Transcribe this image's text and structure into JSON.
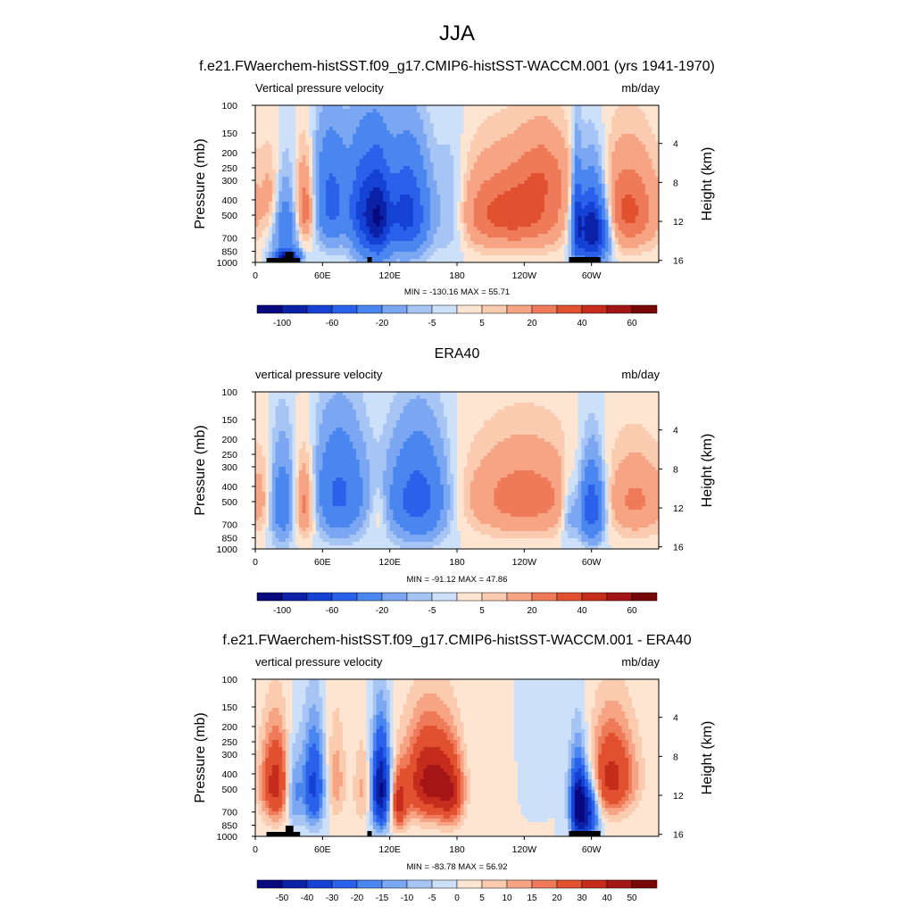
{
  "figure": {
    "title": "JJA"
  },
  "colors": {
    "levels_ab": [
      "#08087f",
      "#0b22a8",
      "#1541d4",
      "#2a61ea",
      "#4a86f0",
      "#7aa6f2",
      "#a6c4f4",
      "#cde0f9",
      "#fde5d2",
      "#fbcbb0",
      "#f6a484",
      "#ef7a5a",
      "#e1512f",
      "#c62c1c",
      "#a41616",
      "#780808"
    ],
    "levels_diff": [
      "#08087f",
      "#0b22a8",
      "#1541d4",
      "#2a61ea",
      "#4a86f0",
      "#7aa6f2",
      "#a6c4f4",
      "#cde0f9",
      "#fde5d2",
      "#fbcbb0",
      "#f6a484",
      "#ef7a5a",
      "#e1512f",
      "#c62c1c",
      "#a41616",
      "#780808"
    ]
  },
  "chart_data": [
    {
      "type": "heatmap",
      "title": "f.e21.FWaerchem-histSST.f09_g17.CMIP6-histSST-WACCM.001 (yrs 1941-1970)",
      "left_label": "Vertical pressure velocity",
      "right_label": "mb/day",
      "ylabel": "Pressure (mb)",
      "ylabel_right": "Height (km)",
      "xticks": [
        "0",
        "60E",
        "120E",
        "180",
        "120W",
        "60W"
      ],
      "xtick_lon": [
        0,
        60,
        120,
        180,
        240,
        300
      ],
      "yticks": [
        "100",
        "150",
        "200",
        "250",
        "300",
        "400",
        "500",
        "700",
        "850",
        "1000"
      ],
      "ytick_p": [
        100,
        150,
        200,
        250,
        300,
        400,
        500,
        700,
        850,
        1000
      ],
      "right_ticks": [
        "4",
        "8",
        "12",
        "16"
      ],
      "right_tick_km": [
        4,
        8,
        12,
        16
      ],
      "minmax": "MIN = -130.16  MAX =  55.71",
      "colorbar_labels": [
        "-100",
        "",
        "-60",
        "",
        "-20",
        "",
        "-5",
        "",
        "5",
        "",
        "20",
        "",
        "40",
        "",
        "60",
        ""
      ],
      "xlim": [
        0,
        360
      ],
      "ylim": [
        1000,
        100
      ],
      "terrain": true,
      "pattern": [
        {
          "lon": 14,
          "w": 6,
          "p": 360,
          "h": 250,
          "v": 15
        },
        {
          "lon": 28,
          "w": 9,
          "p": 600,
          "h": 380,
          "v": -35
        },
        {
          "lon": 28,
          "w": 7,
          "p": 920,
          "h": 80,
          "v": -100
        },
        {
          "lon": 44,
          "w": 7,
          "p": 420,
          "h": 300,
          "v": 40
        },
        {
          "lon": 68,
          "w": 12,
          "p": 330,
          "h": 360,
          "v": -55
        },
        {
          "lon": 96,
          "w": 8,
          "p": 420,
          "h": 420,
          "v": -65
        },
        {
          "lon": 110,
          "w": 7,
          "p": 480,
          "h": 420,
          "v": -80
        },
        {
          "lon": 135,
          "w": 14,
          "p": 440,
          "h": 380,
          "v": -75
        },
        {
          "lon": 175,
          "w": 10,
          "p": 420,
          "h": 400,
          "v": -20
        },
        {
          "lon": 230,
          "w": 38,
          "p": 450,
          "h": 330,
          "v": 38
        },
        {
          "lon": 258,
          "w": 16,
          "p": 220,
          "h": 160,
          "v": 20
        },
        {
          "lon": 287,
          "w": 3,
          "p": 500,
          "h": 420,
          "v": -50
        },
        {
          "lon": 300,
          "w": 10,
          "p": 600,
          "h": 360,
          "v": -110
        },
        {
          "lon": 332,
          "w": 20,
          "p": 420,
          "h": 350,
          "v": 35
        }
      ]
    },
    {
      "type": "heatmap",
      "title": "ERA40",
      "left_label": "vertical pressure velocity",
      "right_label": "mb/day",
      "ylabel": "Pressure (mb)",
      "ylabel_right": "Height (km)",
      "xticks": [
        "0",
        "60E",
        "120E",
        "180",
        "120W",
        "60W"
      ],
      "xtick_lon": [
        0,
        60,
        120,
        180,
        240,
        300
      ],
      "yticks": [
        "100",
        "150",
        "200",
        "250",
        "300",
        "400",
        "500",
        "700",
        "850",
        "1000"
      ],
      "ytick_p": [
        100,
        150,
        200,
        250,
        300,
        400,
        500,
        700,
        850,
        1000
      ],
      "right_ticks": [
        "4",
        "8",
        "12",
        "16"
      ],
      "right_tick_km": [
        4,
        8,
        12,
        16
      ],
      "minmax": "MIN = -91.12  MAX =  47.86",
      "colorbar_labels": [
        "-100",
        "",
        "-60",
        "",
        "-20",
        "",
        "-5",
        "",
        "5",
        "",
        "20",
        "",
        "40",
        "",
        "60",
        ""
      ],
      "xlim": [
        0,
        360
      ],
      "ylim": [
        1000,
        100
      ],
      "terrain": false,
      "pattern": [
        {
          "lon": 8,
          "w": 6,
          "p": 450,
          "h": 300,
          "v": 8
        },
        {
          "lon": 24,
          "w": 8,
          "p": 480,
          "h": 380,
          "v": -35
        },
        {
          "lon": 44,
          "w": 7,
          "p": 480,
          "h": 320,
          "v": 30
        },
        {
          "lon": 75,
          "w": 16,
          "p": 380,
          "h": 380,
          "v": -48
        },
        {
          "lon": 110,
          "w": 6,
          "p": 560,
          "h": 250,
          "v": 10
        },
        {
          "lon": 145,
          "w": 18,
          "p": 430,
          "h": 380,
          "v": -55
        },
        {
          "lon": 240,
          "w": 38,
          "p": 430,
          "h": 340,
          "v": 28
        },
        {
          "lon": 280,
          "w": 5,
          "p": 560,
          "h": 300,
          "v": -20
        },
        {
          "lon": 300,
          "w": 8,
          "p": 520,
          "h": 320,
          "v": -65
        },
        {
          "lon": 340,
          "w": 18,
          "p": 460,
          "h": 320,
          "v": 22
        }
      ]
    },
    {
      "type": "heatmap",
      "title": "f.e21.FWaerchem-histSST.f09_g17.CMIP6-histSST-WACCM.001 - ERA40",
      "left_label": "vertical pressure velocity",
      "right_label": "mb/day",
      "ylabel": "Pressure (mb)",
      "ylabel_right": "Height (km)",
      "xticks": [
        "0",
        "60E",
        "120E",
        "180",
        "120W",
        "60W"
      ],
      "xtick_lon": [
        0,
        60,
        120,
        180,
        240,
        300
      ],
      "yticks": [
        "100",
        "150",
        "200",
        "250",
        "300",
        "400",
        "500",
        "700",
        "850",
        "1000"
      ],
      "ytick_p": [
        100,
        150,
        200,
        250,
        300,
        400,
        500,
        700,
        850,
        1000
      ],
      "right_ticks": [
        "4",
        "8",
        "12",
        "16"
      ],
      "right_tick_km": [
        4,
        8,
        12,
        16
      ],
      "minmax": "MIN = -83.78  MAX =  56.92",
      "colorbar_labels": [
        "-50",
        "-40",
        "-30",
        "-20",
        "-15",
        "-10",
        "-5",
        "0",
        "5",
        "10",
        "15",
        "20",
        "30",
        "40",
        "50",
        ""
      ],
      "xlim": [
        0,
        360
      ],
      "ylim": [
        1000,
        100
      ],
      "terrain": true,
      "pattern": [
        {
          "lon": 18,
          "w": 9,
          "p": 420,
          "h": 330,
          "v": 38
        },
        {
          "lon": 34,
          "w": 5,
          "p": 500,
          "h": 320,
          "v": -20
        },
        {
          "lon": 52,
          "w": 7,
          "p": 430,
          "h": 380,
          "v": -35
        },
        {
          "lon": 72,
          "w": 6,
          "p": 380,
          "h": 360,
          "v": 15
        },
        {
          "lon": 96,
          "w": 6,
          "p": 470,
          "h": 350,
          "v": 12
        },
        {
          "lon": 112,
          "w": 6,
          "p": 460,
          "h": 380,
          "v": -55
        },
        {
          "lon": 128,
          "w": 5,
          "p": 620,
          "h": 260,
          "v": 30
        },
        {
          "lon": 155,
          "w": 15,
          "p": 400,
          "h": 330,
          "v": 48
        },
        {
          "lon": 175,
          "w": 8,
          "p": 520,
          "h": 300,
          "v": 25
        },
        {
          "lon": 270,
          "w": 8,
          "p": 280,
          "h": 200,
          "v": -5
        },
        {
          "lon": 288,
          "w": 5,
          "p": 620,
          "h": 380,
          "v": -55
        },
        {
          "lon": 298,
          "w": 6,
          "p": 680,
          "h": 330,
          "v": -40
        },
        {
          "lon": 318,
          "w": 15,
          "p": 370,
          "h": 310,
          "v": 38
        }
      ]
    }
  ]
}
